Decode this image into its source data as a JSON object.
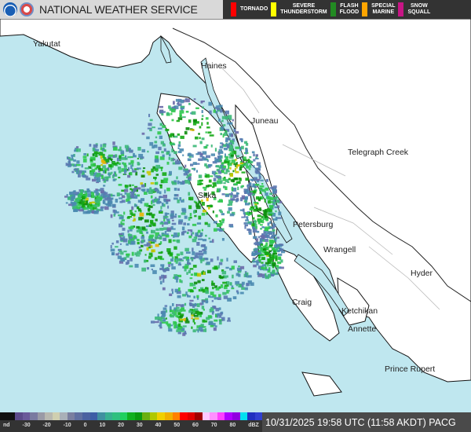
{
  "header": {
    "title": "NATIONAL WEATHER SERVICE",
    "logos": [
      "noaa-logo",
      "nws-logo"
    ],
    "warnings": [
      {
        "label": "TORNADO",
        "color": "#ff0000"
      },
      {
        "label": "SEVERE\nTHUNDERSTORM",
        "color": "#ffff00"
      },
      {
        "label": "FLASH\nFLOOD",
        "color": "#228b22"
      },
      {
        "label": "SPECIAL\nMARINE",
        "color": "#ffa500"
      },
      {
        "label": "SNOW\nSQUALL",
        "color": "#c71585"
      }
    ]
  },
  "map": {
    "water_color": "#bfe7ef",
    "land_color": "#ffffff",
    "cities": [
      "Yakutat",
      "Haines",
      "Juneau",
      "Telegraph Creek",
      "Sitka",
      "Petersburg",
      "Wrangell",
      "Hyder",
      "Craig",
      "Ketchikan",
      "Annette",
      "Prince Rupert"
    ]
  },
  "scale": {
    "ticks": [
      "nd",
      "-30",
      "-20",
      "-10",
      "0",
      "10",
      "20",
      "30",
      "40",
      "50",
      "60",
      "70",
      "80",
      "dBZ"
    ],
    "colors": [
      "#111",
      "#111",
      "#5b4a8a",
      "#6a5a9a",
      "#7a7aa0",
      "#9a9aa6",
      "#b8b8b0",
      "#cfcfb0",
      "#a9b0b8",
      "#7a7f9f",
      "#6070a0",
      "#4a62a0",
      "#3d5ea6",
      "#4090a0",
      "#38b090",
      "#30c080",
      "#20d060",
      "#10b020",
      "#0a9a10",
      "#6ab010",
      "#b0c800",
      "#f0d000",
      "#f0b000",
      "#ff8000",
      "#ff0000",
      "#e00000",
      "#a00000",
      "#ffc8ff",
      "#ff90ff",
      "#ff40ff",
      "#b000ff",
      "#9000e0",
      "#00e0f0",
      "#2030c0",
      "#3040d0"
    ]
  },
  "footer": {
    "timestamp": "10/31/2025 19:58 UTC (11:58 AKDT) PACG"
  }
}
